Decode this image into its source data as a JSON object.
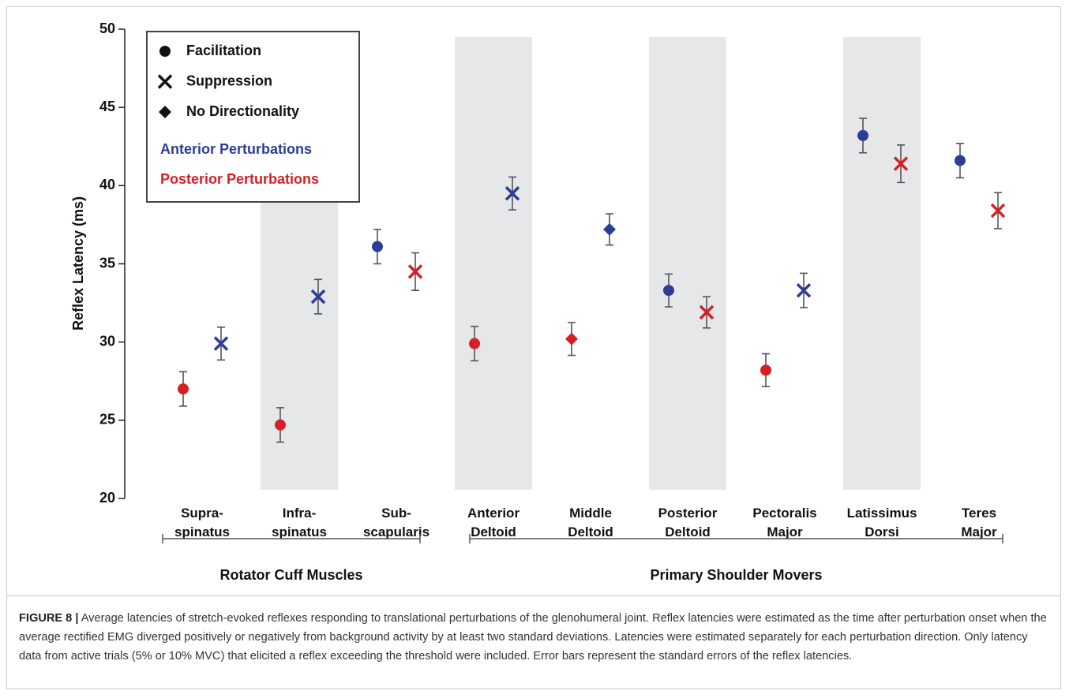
{
  "chart_data": {
    "type": "errorbar",
    "ylabel": "Reflex Latency (ms)",
    "ylim": [
      20,
      50
    ],
    "yticks": [
      20,
      25,
      30,
      35,
      40,
      45,
      50
    ],
    "groups": [
      {
        "name": "Rotator Cuff Muscles",
        "categories": [
          "Supra-\nspinatus",
          "Infra-\nspinatus",
          "Sub-\nscapularis"
        ]
      },
      {
        "name": "Primary Shoulder Movers",
        "categories": [
          "Anterior\nDeltoid",
          "Middle\nDeltoid",
          "Posterior\nDeltoid",
          "Pectoralis\nMajor",
          "Latissimus\nDorsi",
          "Teres\nMajor"
        ]
      }
    ],
    "markers": [
      {
        "name": "Facilitation",
        "symbol": "circle"
      },
      {
        "name": "Suppression",
        "symbol": "x"
      },
      {
        "name": "No Directionality",
        "symbol": "diamond"
      }
    ],
    "series": [
      {
        "name": "Anterior Perturbations",
        "color": "#2e3d96",
        "values": [
          29.9,
          32.9,
          36.1,
          39.5,
          37.2,
          33.3,
          33.3,
          43.2,
          41.6
        ],
        "errors": [
          1.05,
          1.1,
          1.1,
          1.05,
          1.0,
          1.05,
          1.1,
          1.1,
          1.1
        ],
        "symbols": [
          "x",
          "x",
          "circle",
          "x",
          "diamond",
          "circle",
          "x",
          "circle",
          "circle"
        ]
      },
      {
        "name": "Posterior Perturbations",
        "color": "#d71f26",
        "values": [
          27.0,
          24.7,
          34.5,
          29.9,
          30.2,
          31.9,
          28.2,
          41.4,
          38.4
        ],
        "errors": [
          1.1,
          1.1,
          1.2,
          1.1,
          1.05,
          1.0,
          1.05,
          1.2,
          1.15
        ],
        "symbols": [
          "circle",
          "circle",
          "x",
          "circle",
          "diamond",
          "x",
          "circle",
          "x",
          "x"
        ]
      }
    ]
  },
  "caption": {
    "label": "FIGURE 8 |",
    "text": "Average latencies of stretch-evoked reflexes responding to translational perturbations of the glenohumeral joint. Reflex latencies were estimated as the time after perturbation onset when the average rectified EMG diverged positively or negatively from background activity by at least two standard deviations. Latencies were estimated separately for each perturbation direction. Only latency data from active trials (5% or 10% MVC) that elicited a reflex exceeding the threshold were included. Error bars represent the standard errors of the reflex latencies."
  }
}
